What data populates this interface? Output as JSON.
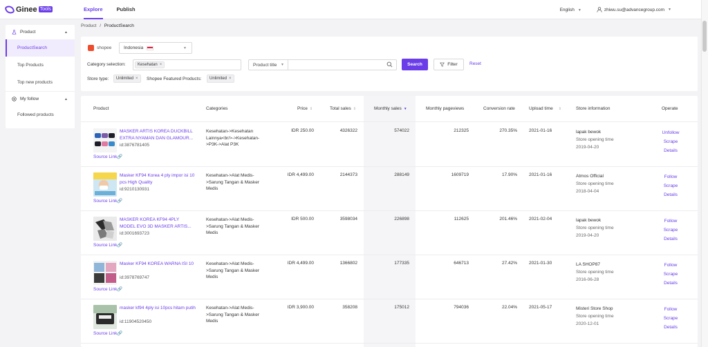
{
  "app": {
    "brand": "Ginee",
    "badge": "Tools"
  },
  "nav": [
    {
      "label": "Explore",
      "active": true
    },
    {
      "label": "Publish",
      "active": false
    }
  ],
  "top_right": {
    "language": "English",
    "user": "zhiwu.su@advancegroup.com"
  },
  "sidebar": {
    "groups": [
      {
        "label": "Product",
        "items": [
          "ProductSearch",
          "Top Products",
          "Top new products"
        ]
      },
      {
        "label": "My follow",
        "items": [
          "Followed products"
        ]
      }
    ]
  },
  "breadcrumb": {
    "root": "Product",
    "sep": "/",
    "current": "ProductSearch"
  },
  "filters": {
    "shop": "shopee",
    "country": "Indonesia",
    "category_label": "Category selection:",
    "category_tag": "Kesehatan",
    "title_select": "Product title",
    "title_placeholder": "",
    "search_btn": "Search",
    "filter_btn": "Filter",
    "reset": "Reset",
    "store_type_label": "Store type:",
    "store_type_tag": "Unlimited",
    "featured_label": "Shopee Featured Products:",
    "featured_tag": "Unlimited"
  },
  "table": {
    "headers": {
      "product": "Product",
      "categories": "Categories",
      "price": "Price",
      "total_sales": "Total sales",
      "monthly_sales": "Monthly sales",
      "monthly_pageviews": "Monthly pageviews",
      "conversion": "Conversion rate",
      "upload": "Upload time",
      "store": "Store information",
      "operate": "Operate"
    },
    "source_link": "Source Link",
    "store_open_label": "Store opening time",
    "rows": [
      {
        "name": "MASKER ARTIS KOREA DUCKBILL EXTRA NYAMAN DAN GLAMOUR...",
        "id": "id:3876781405",
        "category": "Kesehatan->Kesehatan Lainnya<br/>->Kesehatan->P3K->Alat P3K",
        "price": "IDR 250.00",
        "total_sales": "4326322",
        "monthly_sales": "574022",
        "pageviews": "212325",
        "conversion": "270.35%",
        "upload": "2021-01-16",
        "store": "lapak bewok",
        "store_open": "2019-04-20",
        "follow": "Unfollow",
        "scrape": "Scrape",
        "details": "Details"
      },
      {
        "name": "Masker KF94 Korea 4 ply impor isi 10 pcs High Quality",
        "id": "id:9210130931",
        "category": "Kesehatan->Alat Medis->Sarung Tangan & Masker Medis",
        "price": "IDR 4,499.00",
        "total_sales": "2144373",
        "monthly_sales": "288149",
        "pageviews": "1609719",
        "conversion": "17.90%",
        "upload": "2021-01-16",
        "store": "Atmos Official",
        "store_open": "2018-04-04",
        "follow": "Follow",
        "scrape": "Scrape",
        "details": "Details"
      },
      {
        "name": "MASKER KOREA KF94 4PLY MODEL EVO 3D MASKER ARTIS...",
        "id": "id:3001693723",
        "category": "Kesehatan->Alat Medis->Sarung Tangan & Masker Medis",
        "price": "IDR 500.00",
        "total_sales": "3598034",
        "monthly_sales": "226898",
        "pageviews": "112625",
        "conversion": "201.46%",
        "upload": "2021-02-04",
        "store": "lapak bewok",
        "store_open": "2019-04-20",
        "follow": "Follow",
        "scrape": "Scrape",
        "details": "Details"
      },
      {
        "name": "Masker KF94 KOREA WARNA ISI 10",
        "id": "id:3978769747",
        "category": "Kesehatan->Alat Medis->Sarung Tangan & Masker Medis",
        "price": "IDR 4,499.00",
        "total_sales": "1366802",
        "monthly_sales": "177335",
        "pageviews": "646713",
        "conversion": "27.42%",
        "upload": "2021-01-30",
        "store": "LA SHOP87",
        "store_open": "2016-06-28",
        "follow": "Follow",
        "scrape": "Scrape",
        "details": "Details"
      },
      {
        "name": "masker kf94 4ply isi 10pcs hitam putih",
        "id": "id:11904520450",
        "category": "Kesehatan->Alat Medis->Sarung Tangan & Masker Medis",
        "price": "IDR 3,900.00",
        "total_sales": "358208",
        "monthly_sales": "175012",
        "pageviews": "794036",
        "conversion": "22.04%",
        "upload": "2021-05-17",
        "store": "Misteri Store Shop",
        "store_open": "2020-12-01",
        "follow": "Follow",
        "scrape": "Scrape",
        "details": "Details"
      }
    ]
  },
  "colors": {
    "accent": "#6a3de8",
    "shopee": "#ee4d2d"
  }
}
